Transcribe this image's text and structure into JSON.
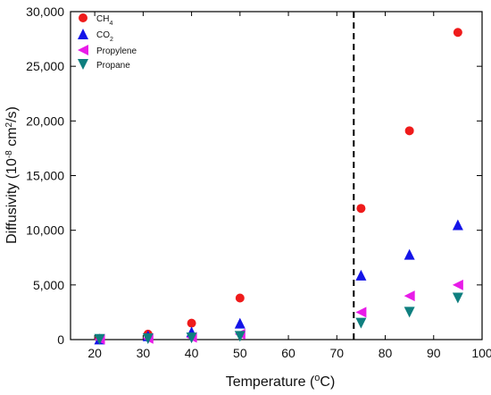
{
  "chart_data": {
    "type": "scatter",
    "xlabel": "Temperature (°C)",
    "ylabel": "Diffusivity (10-8 cm2/s)",
    "xlim": [
      15,
      100
    ],
    "ylim": [
      0,
      30000
    ],
    "x_ticks": [
      "20",
      "30",
      "40",
      "50",
      "60",
      "70",
      "80",
      "90",
      "100"
    ],
    "y_ticks": [
      "0",
      "5,000",
      "10,000",
      "15,000",
      "20,000",
      "25,000",
      "30,000"
    ],
    "legend_position": "top-left",
    "grid": false,
    "vertical_reference_line": {
      "x": 73.5,
      "style": "dashed"
    },
    "series": [
      {
        "name": "CH4",
        "marker": "circle",
        "color": "#ef1b1b",
        "x": [
          21,
          31,
          40,
          50,
          75,
          85,
          95
        ],
        "y": [
          100,
          500,
          1500,
          3800,
          12000,
          19100,
          28100
        ]
      },
      {
        "name": "CO2",
        "marker": "triangle-up",
        "color": "#1414e8",
        "x": [
          21,
          31,
          40,
          50,
          75,
          85,
          95
        ],
        "y": [
          50,
          350,
          700,
          1500,
          5900,
          7800,
          10500
        ]
      },
      {
        "name": "Propylene",
        "marker": "triangle-left",
        "color": "#e81be8",
        "x": [
          21,
          31,
          40,
          50,
          75,
          85,
          95
        ],
        "y": [
          30,
          100,
          200,
          500,
          2500,
          4000,
          5000
        ]
      },
      {
        "name": "Propane",
        "marker": "triangle-down",
        "color": "#0f7f7f",
        "x": [
          21,
          31,
          40,
          50,
          75,
          85,
          95
        ],
        "y": [
          20,
          80,
          150,
          300,
          1500,
          2500,
          3800
        ]
      }
    ]
  }
}
